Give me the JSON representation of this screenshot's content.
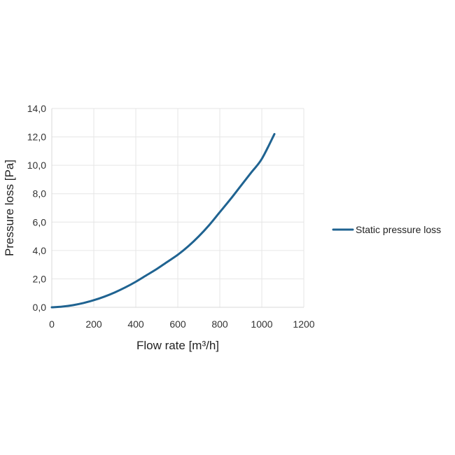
{
  "chart_data": {
    "type": "line",
    "title": "",
    "xlabel": "Flow rate [m³/h]",
    "ylabel": "Pressure loss [Pa]",
    "xlim": [
      0,
      1200
    ],
    "ylim": [
      0,
      14
    ],
    "x_ticks": [
      0,
      200,
      400,
      600,
      800,
      1000,
      1200
    ],
    "y_ticks": [
      0,
      2,
      4,
      6,
      8,
      10,
      12,
      14
    ],
    "x_tick_labels": [
      "0",
      "200",
      "400",
      "600",
      "800",
      "1000",
      "1200"
    ],
    "y_tick_labels": [
      "0,0",
      "2,0",
      "4,0",
      "6,0",
      "8,0",
      "10,0",
      "12,0",
      "14,0"
    ],
    "grid": true,
    "legend_position": "right",
    "series": [
      {
        "name": "Static pressure loss",
        "color": "#1f6391",
        "x": [
          0,
          50,
          100,
          150,
          200,
          250,
          300,
          350,
          400,
          450,
          500,
          550,
          600,
          650,
          700,
          750,
          800,
          850,
          900,
          950,
          1000,
          1060
        ],
        "y": [
          0,
          0.05,
          0.15,
          0.3,
          0.5,
          0.75,
          1.05,
          1.4,
          1.8,
          2.25,
          2.7,
          3.2,
          3.7,
          4.3,
          5.0,
          5.8,
          6.7,
          7.6,
          8.55,
          9.5,
          10.45,
          12.2
        ]
      }
    ]
  }
}
